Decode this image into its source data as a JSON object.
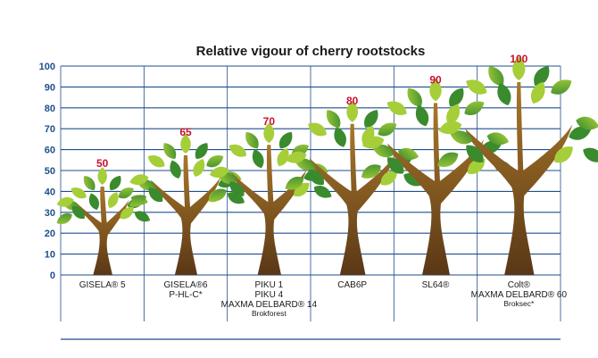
{
  "chart_data": {
    "type": "bar",
    "title": "Relative vigour of cherry rootstocks",
    "xlabel": "",
    "ylabel": "",
    "ylim": [
      0,
      100
    ],
    "yticks": [
      "0",
      "10",
      "20",
      "30",
      "40",
      "50",
      "60",
      "70",
      "80",
      "90",
      "100"
    ],
    "grid": true,
    "mark_style": "tree",
    "categories": [
      {
        "lines": [
          "GISELA® 5"
        ],
        "small": []
      },
      {
        "lines": [
          "GISELA®6",
          "P-HL-C*"
        ],
        "small": []
      },
      {
        "lines": [
          "PIKU 1",
          "PIKU 4",
          "MAXMA DELBARD® 14"
        ],
        "small": [
          "Brokforest"
        ]
      },
      {
        "lines": [
          "CAB6P"
        ],
        "small": []
      },
      {
        "lines": [
          "SL64®"
        ],
        "small": []
      },
      {
        "lines": [
          "Colt®",
          "MAXMA DELBARD® 60"
        ],
        "small": [
          "Broksec*"
        ]
      }
    ],
    "values": [
      50,
      65,
      70,
      80,
      90,
      100
    ],
    "data_labels": [
      "50",
      "65",
      "70",
      "80",
      "90",
      "100"
    ],
    "colors": {
      "grid": "#1f4e8c",
      "tick_text": "#1f4e8c",
      "data_label": "#c8102e",
      "trunk_light": "#a8782a",
      "trunk_dark": "#5a3716",
      "leaf_light": "#a6ce39",
      "leaf_dark": "#3a8a2e"
    }
  }
}
